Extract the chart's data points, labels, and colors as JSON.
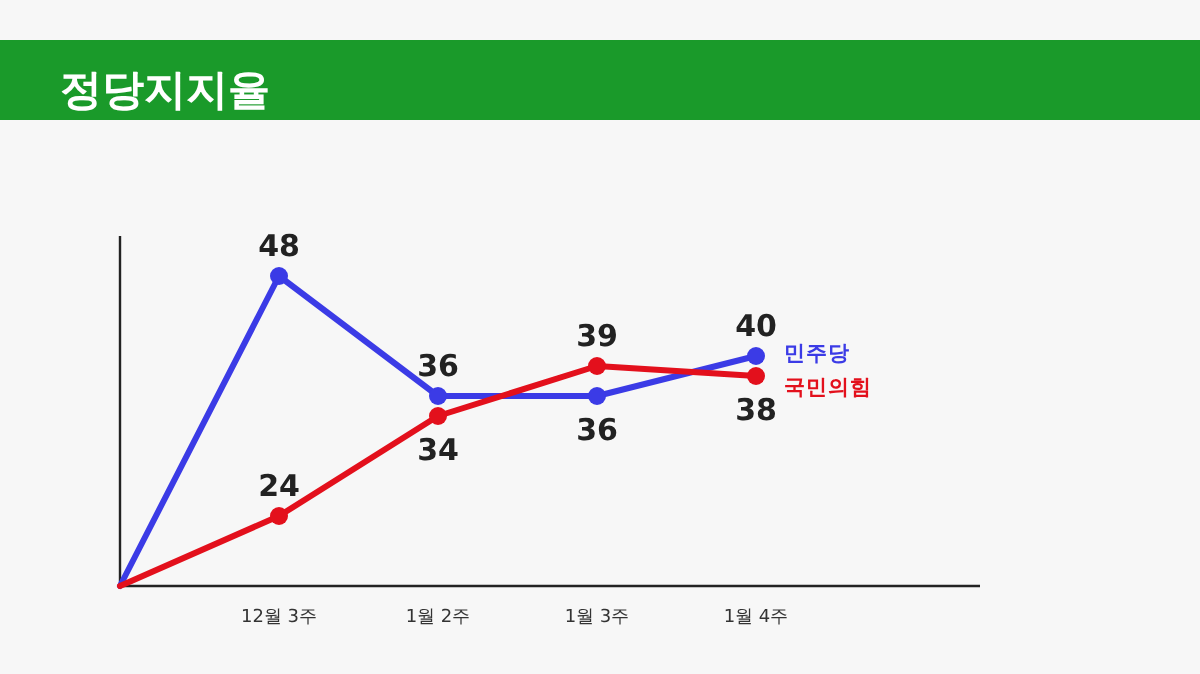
{
  "chart_data": {
    "type": "line",
    "title": "정당지지율",
    "categories": [
      null,
      "12월 3주",
      "1월 2주",
      "1월 3주",
      "1월 4주"
    ],
    "ylim": [
      17,
      52
    ],
    "tick_labels": "x",
    "marker": "circle",
    "line_style": "solid",
    "series": [
      {
        "name": "민주당",
        "color": "#3b3be6",
        "values": [
          17,
          48,
          36,
          36,
          40
        ],
        "value_labels": [
          null,
          "48",
          "36",
          "36",
          "40"
        ]
      },
      {
        "name": "국민의힘",
        "color": "#e3101c",
        "values": [
          17,
          24,
          34,
          39,
          38
        ],
        "value_labels": [
          null,
          "24",
          "34",
          "39",
          "38"
        ]
      }
    ]
  }
}
